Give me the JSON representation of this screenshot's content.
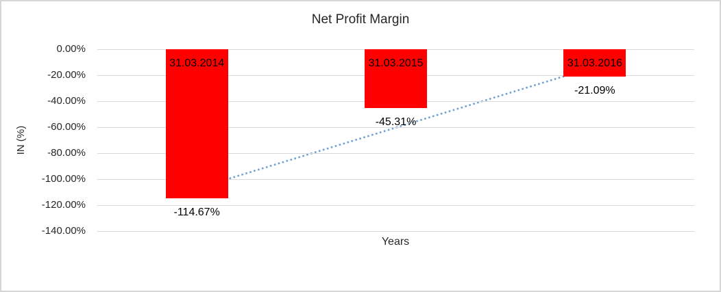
{
  "window": {
    "background": "#ffffff",
    "border_color": "#d6d6d6"
  },
  "chart_data": {
    "type": "bar",
    "title": "Net Profit Margin",
    "xlabel": "Years",
    "ylabel": "IN (%)",
    "categories": [
      "31.03.2014",
      "31.03.2015",
      "31.03.2016"
    ],
    "values": [
      -114.67,
      -45.31,
      -21.09
    ],
    "data_labels": [
      "-114.67%",
      "-45.31%",
      "-21.09%"
    ],
    "y_ticks": [
      "0.00%",
      "-20.00%",
      "-40.00%",
      "-60.00%",
      "-80.00%",
      "-100.00%",
      "-120.00%",
      "-140.00%"
    ],
    "y_tick_values": [
      0,
      -20,
      -40,
      -60,
      -80,
      -100,
      -120,
      -140
    ],
    "ylim": [
      -140,
      0
    ],
    "grid": true,
    "legend": "none",
    "bar_color": "#ff0000",
    "gridline_color": "#d9d9d9",
    "label_color": "#000000",
    "trendline": {
      "type": "linear",
      "style": "dotted",
      "color": "#6fa0d6"
    }
  }
}
